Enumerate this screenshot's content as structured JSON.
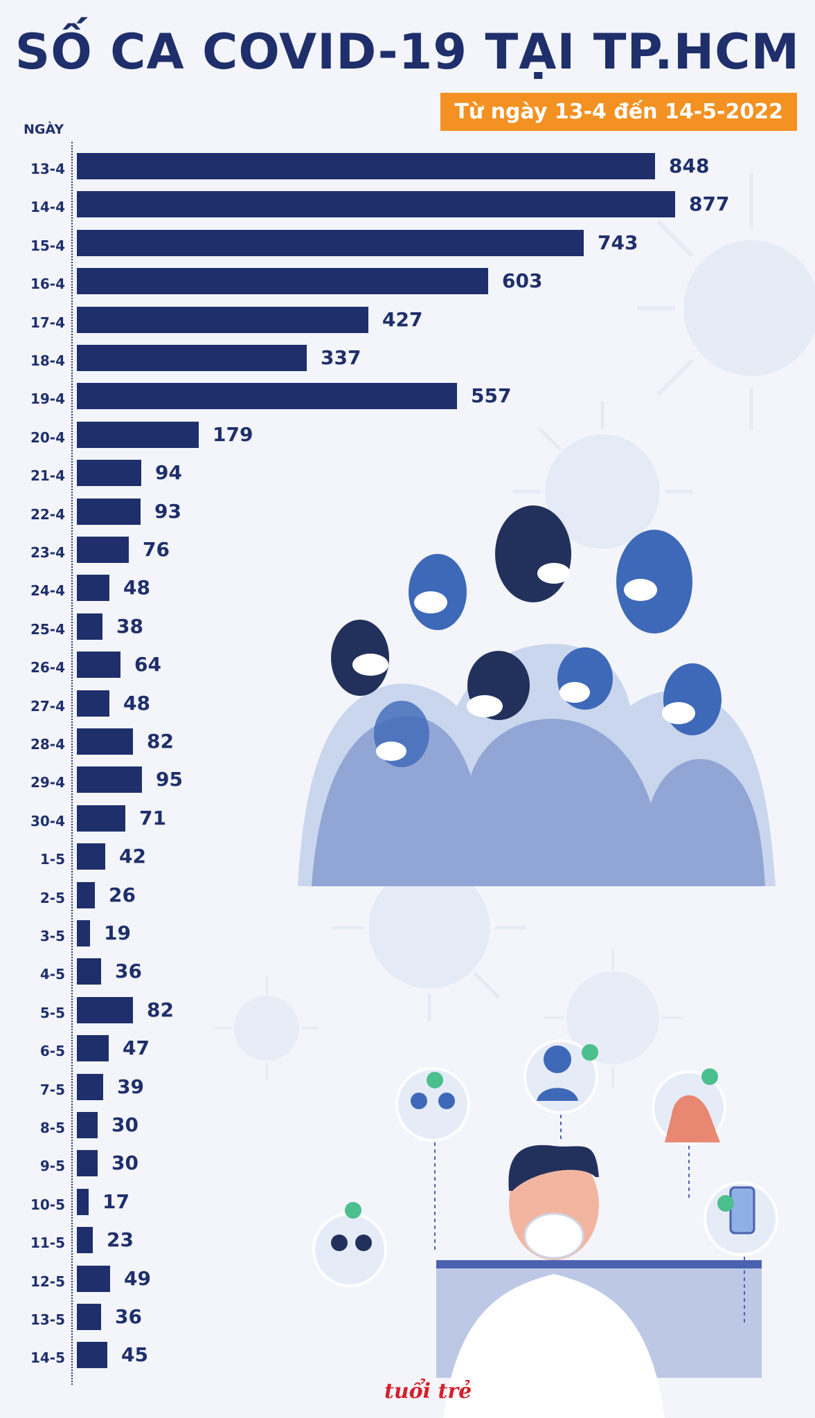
{
  "header": {
    "title": "SỐ CA COVID-19 TẠI TP.HCM",
    "subtitle": "Từ ngày 13-4 đến 14-5-2022"
  },
  "logo_text": "tuổi trẻ",
  "colors": {
    "bar": "#1f2f6b",
    "accent": "#f39122",
    "background": "#f3f5fa"
  },
  "chart_data": {
    "type": "bar",
    "orientation": "horizontal",
    "title": "SỐ CA COVID-19 TẠI TP.HCM",
    "subtitle": "Từ ngày 13-4 đến 14-5-2022",
    "ylabel": "NGÀY",
    "xlabel": "",
    "xlim": [
      0,
      877
    ],
    "categories": [
      "13-4",
      "14-4",
      "15-4",
      "16-4",
      "17-4",
      "18-4",
      "19-4",
      "20-4",
      "21-4",
      "22-4",
      "23-4",
      "24-4",
      "25-4",
      "26-4",
      "27-4",
      "28-4",
      "29-4",
      "30-4",
      "1-5",
      "2-5",
      "3-5",
      "4-5",
      "5-5",
      "6-5",
      "7-5",
      "8-5",
      "9-5",
      "10-5",
      "11-5",
      "12-5",
      "13-5",
      "14-5"
    ],
    "values": [
      848,
      877,
      743,
      603,
      427,
      337,
      557,
      179,
      94,
      93,
      76,
      48,
      38,
      64,
      48,
      82,
      95,
      71,
      42,
      26,
      19,
      36,
      82,
      47,
      39,
      30,
      30,
      17,
      23,
      49,
      36,
      45
    ]
  }
}
